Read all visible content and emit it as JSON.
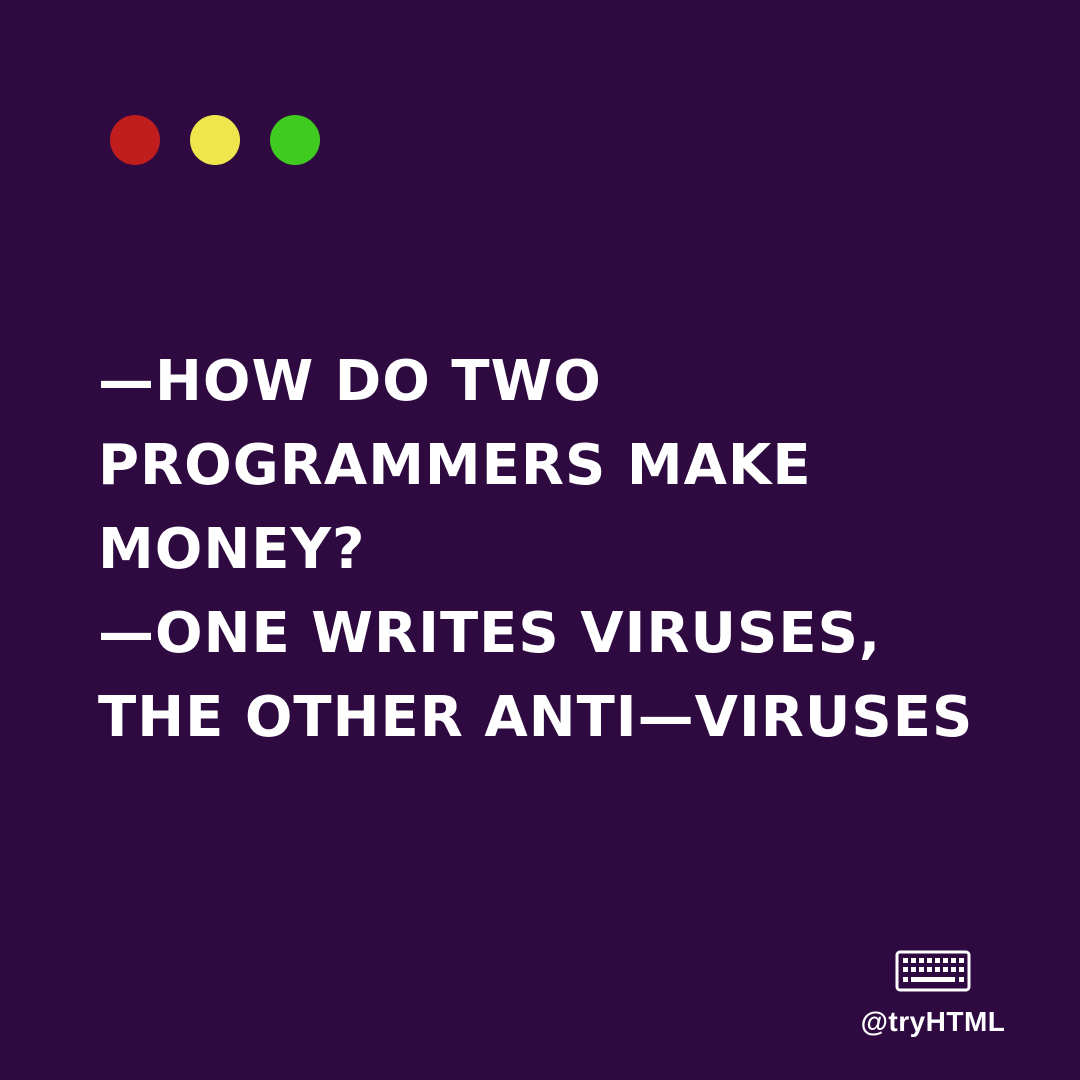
{
  "colors": {
    "background": "#2e0a40",
    "text": "#ffffff",
    "dot_red": "#c01d1d",
    "dot_yellow": "#efe64d",
    "dot_green": "#3fcb1f"
  },
  "window_controls": {
    "icons": [
      "red-dot-icon",
      "yellow-dot-icon",
      "green-dot-icon"
    ]
  },
  "joke": {
    "lines": [
      "—HOW DO TWO",
      "PROGRAMMERS MAKE",
      "MONEY?",
      "—ONE WRITES VIRUSES,",
      "THE OTHER ANTI—VIRUSES"
    ]
  },
  "brand": {
    "icon": "keyboard-icon",
    "handle": "@tryHTML"
  }
}
